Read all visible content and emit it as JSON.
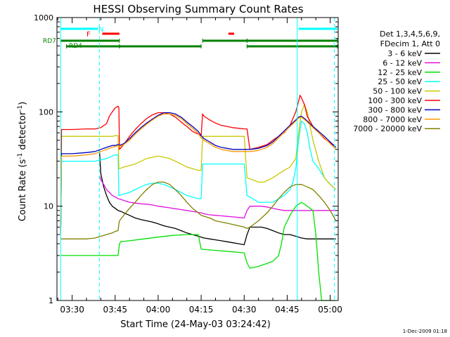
{
  "chart_data": {
    "type": "line",
    "title": "HESSI Observing Summary Count Rates",
    "xlabel": "Start Time (24-May-03 03:24:42)",
    "ylabel_main": "Count Rate (s",
    "ylabel_sup1": "-1",
    "ylabel_mid": " detector",
    "ylabel_sup2": "-1",
    "ylabel_end": ")",
    "y_scale": "log",
    "ylim": [
      1,
      1000
    ],
    "y_ticks": [
      {
        "value": 1,
        "label": "1"
      },
      {
        "value": 10,
        "label": "10"
      },
      {
        "value": 100,
        "label": "100"
      },
      {
        "value": 1000,
        "label": "1000"
      }
    ],
    "x_start_min": 24.7,
    "x_end_min": 122.8,
    "x_ticks": [
      {
        "value": 30,
        "label": "03:30"
      },
      {
        "value": 45,
        "label": "03:45"
      },
      {
        "value": 60,
        "label": "04:00"
      },
      {
        "value": 75,
        "label": "04:15"
      },
      {
        "value": 90,
        "label": "04:30"
      },
      {
        "value": 105,
        "label": "04:45"
      },
      {
        "value": 120,
        "label": "05:00"
      }
    ],
    "legend_header": [
      "Det 1,3,4,5,6,9,",
      "FDecim 1, Att 0"
    ],
    "legend_position": "right",
    "series": [
      {
        "name": "3 - 6 keV",
        "color": "#000000",
        "x": [
          39.5,
          40,
          41,
          42,
          43,
          44,
          45,
          46,
          47,
          48,
          50,
          52,
          54,
          56,
          58,
          60,
          62,
          64,
          66,
          68,
          70,
          72,
          74,
          75,
          76,
          78,
          80,
          82,
          84,
          86,
          88,
          90,
          91,
          92,
          94,
          96,
          98,
          100,
          102,
          104,
          106,
          108,
          110,
          112,
          114,
          116,
          118,
          120,
          122
        ],
        "y": [
          40,
          22,
          16,
          13,
          11,
          10,
          9.5,
          9,
          8.8,
          8.5,
          8,
          7.5,
          7.2,
          7,
          6.8,
          6.5,
          6.2,
          6,
          5.8,
          5.5,
          5.2,
          5,
          4.8,
          4.7,
          4.6,
          4.5,
          4.4,
          4.3,
          4.2,
          4.1,
          4,
          3.9,
          5,
          6,
          6,
          6,
          5.8,
          5.5,
          5.2,
          5,
          5,
          4.8,
          4.6,
          4.5,
          4.5,
          4.5,
          4.5,
          4.5,
          4.5
        ]
      },
      {
        "name": "6 - 12 keV",
        "color": "#e010e0",
        "x": [
          39.5,
          40,
          41,
          42,
          43,
          44,
          45,
          46,
          47,
          48,
          50,
          52,
          54,
          56,
          58,
          60,
          62,
          64,
          66,
          68,
          70,
          72,
          74,
          75,
          76,
          78,
          80,
          82,
          84,
          86,
          88,
          90,
          91,
          92,
          94,
          96,
          98,
          100,
          102,
          104,
          106,
          108,
          110,
          112,
          114,
          116,
          118,
          120,
          122
        ],
        "y": [
          21,
          19,
          17,
          15,
          14,
          13,
          12.5,
          12,
          11.8,
          11.5,
          11,
          10.8,
          10.6,
          10.5,
          10.3,
          10,
          9.8,
          9.6,
          9.4,
          9.2,
          9,
          8.8,
          8.6,
          8.5,
          8.3,
          8.1,
          8,
          7.9,
          7.8,
          7.7,
          7.6,
          7.5,
          9,
          10,
          10,
          10,
          9.8,
          9.5,
          9.2,
          9,
          9,
          9,
          9,
          9,
          9,
          9,
          9,
          9,
          9
        ]
      },
      {
        "name": "12 - 25 keV",
        "color": "#00e000",
        "x": [
          26,
          30,
          35,
          38,
          40,
          43,
          45,
          46,
          46.5,
          47,
          50,
          55,
          60,
          65,
          70,
          73,
          74,
          75,
          80,
          85,
          90,
          91,
          92,
          95,
          100,
          102,
          103,
          104,
          106,
          108,
          110,
          112,
          114,
          115,
          116,
          117,
          118,
          120,
          122
        ],
        "y": [
          3,
          3,
          3,
          3,
          3,
          3,
          3,
          3,
          4,
          4.2,
          4.3,
          4.5,
          4.7,
          4.9,
          5,
          5,
          5,
          3.5,
          3.4,
          3.3,
          3.2,
          2.5,
          2.2,
          2.3,
          2.6,
          3,
          4,
          6,
          8,
          10,
          11,
          10,
          9,
          5,
          2,
          1,
          1,
          1,
          1
        ]
      },
      {
        "name": "25 - 50 keV",
        "color": "#00ffff",
        "x": [
          26,
          26.3,
          30,
          35,
          38,
          40,
          42,
          44,
          45,
          46,
          46.3,
          46.5,
          48,
          50,
          52,
          54,
          56,
          58,
          60,
          62,
          64,
          66,
          68,
          70,
          72,
          74,
          75,
          75.5,
          78,
          80,
          85,
          90,
          91,
          93,
          95,
          97,
          100,
          102,
          104,
          105,
          106,
          107,
          108,
          109,
          110,
          111,
          112,
          113,
          114,
          116,
          118,
          120,
          122
        ],
        "y": [
          5,
          30,
          30,
          30,
          30,
          31,
          32,
          34,
          35,
          35,
          13,
          13,
          13.5,
          14,
          15,
          16,
          17,
          17.5,
          17.5,
          17,
          16,
          15,
          14,
          13,
          12.5,
          12,
          12,
          28,
          28,
          28,
          28,
          28,
          13,
          12,
          11,
          11,
          11,
          12,
          13,
          14,
          15,
          18,
          25,
          50,
          80,
          75,
          60,
          40,
          30,
          25,
          20,
          17,
          15
        ]
      },
      {
        "name": "50 - 100 keV",
        "color": "#c8c800",
        "x": [
          26,
          26.3,
          30,
          35,
          40,
          44,
          45,
          46,
          46.3,
          46.5,
          48,
          50,
          52,
          54,
          56,
          58,
          60,
          62,
          64,
          66,
          68,
          70,
          72,
          74,
          75,
          75.5,
          78,
          80,
          85,
          90,
          91,
          93,
          95,
          97,
          100,
          102,
          104,
          106,
          108,
          109,
          110,
          111,
          112,
          113,
          114,
          116,
          118,
          120,
          122
        ],
        "y": [
          5,
          55,
          55,
          55,
          55,
          55,
          56,
          56,
          25,
          25,
          26,
          27,
          28,
          30,
          32,
          33,
          34,
          33,
          32,
          30,
          28,
          26,
          25,
          24,
          24,
          55,
          55,
          55,
          55,
          55,
          20,
          19,
          18,
          18,
          20,
          22,
          24,
          26,
          32,
          60,
          100,
          120,
          100,
          70,
          50,
          30,
          20,
          17,
          15
        ]
      },
      {
        "name": "100 - 300 keV",
        "color": "#ff0000",
        "x": [
          26,
          26.3,
          30,
          35,
          38,
          40,
          42,
          43,
          44,
          45,
          46,
          46.3,
          46.5,
          48,
          50,
          52,
          54,
          56,
          58,
          60,
          62,
          64,
          66,
          68,
          70,
          72,
          74,
          75,
          75.5,
          76,
          78,
          80,
          82,
          84,
          86,
          88,
          90,
          91,
          92,
          95,
          98,
          100,
          102,
          104,
          106,
          107,
          108,
          109,
          109.5,
          110,
          111,
          112,
          114,
          116,
          118,
          120,
          122
        ],
        "y": [
          5,
          65,
          65,
          66,
          66,
          68,
          75,
          90,
          100,
          110,
          115,
          110,
          40,
          45,
          55,
          65,
          75,
          85,
          93,
          98,
          98,
          95,
          88,
          78,
          70,
          62,
          58,
          56,
          95,
          90,
          82,
          76,
          72,
          70,
          68,
          67,
          66,
          66,
          40,
          42,
          45,
          50,
          55,
          60,
          72,
          85,
          100,
          130,
          150,
          140,
          120,
          90,
          70,
          60,
          52,
          47,
          42
        ]
      },
      {
        "name": "300 - 800 keV",
        "color": "#0000c0",
        "x": [
          26,
          26.3,
          30,
          35,
          38,
          40,
          42,
          44,
          45,
          46,
          46.3,
          46.5,
          48,
          50,
          52,
          54,
          56,
          58,
          60,
          62,
          64,
          66,
          68,
          70,
          72,
          74,
          75,
          76,
          78,
          80,
          82,
          84,
          86,
          88,
          90,
          91,
          92,
          95,
          98,
          100,
          102,
          104,
          106,
          108,
          109,
          110,
          111,
          112,
          114,
          116,
          118,
          120,
          122
        ],
        "y": [
          5,
          36,
          36,
          37,
          38,
          40,
          42,
          44,
          44,
          45,
          45,
          44,
          46,
          52,
          60,
          68,
          76,
          84,
          92,
          98,
          98,
          95,
          88,
          78,
          70,
          62,
          56,
          52,
          48,
          44,
          42,
          41,
          40,
          40,
          40,
          40,
          40,
          41,
          44,
          48,
          55,
          63,
          72,
          82,
          88,
          90,
          85,
          80,
          70,
          62,
          55,
          48,
          42
        ]
      },
      {
        "name": "800 - 7000 keV",
        "color": "#ff9900",
        "x": [
          26,
          26.3,
          30,
          35,
          38,
          40,
          42,
          44,
          45,
          46,
          46.3,
          46.5,
          48,
          50,
          52,
          54,
          56,
          58,
          60,
          62,
          64,
          66,
          68,
          70,
          72,
          74,
          75,
          76,
          78,
          80,
          82,
          84,
          86,
          88,
          90,
          91,
          92,
          95,
          98,
          100,
          102,
          104,
          106,
          108,
          109,
          110,
          111,
          112,
          114,
          116,
          118,
          120,
          122
        ],
        "y": [
          5,
          34,
          34,
          35,
          36,
          38,
          40,
          42,
          43,
          44,
          44,
          43,
          45,
          50,
          58,
          66,
          74,
          82,
          90,
          95,
          95,
          92,
          85,
          75,
          67,
          59,
          53,
          50,
          46,
          42,
          40,
          39,
          38,
          38,
          38,
          38,
          38,
          39,
          42,
          46,
          53,
          61,
          70,
          80,
          86,
          88,
          83,
          78,
          68,
          60,
          53,
          46,
          40
        ]
      },
      {
        "name": "7000 - 20000 keV",
        "color": "#808000",
        "x": [
          26,
          30,
          35,
          38,
          40,
          42,
          44,
          45,
          46,
          46.3,
          46.5,
          48,
          50,
          52,
          54,
          56,
          58,
          60,
          62,
          64,
          66,
          68,
          70,
          72,
          74,
          75,
          78,
          80,
          85,
          90,
          91,
          92,
          95,
          98,
          100,
          102,
          104,
          106,
          108,
          110,
          112,
          114,
          116,
          118,
          120,
          122
        ],
        "y": [
          4.5,
          4.5,
          4.5,
          4.6,
          4.8,
          5,
          5.2,
          5.4,
          5.5,
          6.5,
          7,
          8,
          9.5,
          11,
          13,
          15,
          17,
          18,
          18,
          17,
          15,
          13,
          11,
          9.5,
          8.5,
          8,
          7.5,
          7,
          6.5,
          6,
          5.8,
          6,
          7,
          8.5,
          10,
          12,
          14,
          16,
          17,
          17,
          16,
          15,
          13,
          11,
          9,
          7
        ]
      }
    ]
  },
  "attenuator_lines": [
    {
      "value": 26,
      "style": "solid"
    },
    {
      "value": 39.5,
      "style": "dashed"
    },
    {
      "value": 108.5,
      "style": "solid"
    },
    {
      "value": 121.5,
      "style": "dashed"
    }
  ],
  "flags": {
    "n_label": "N",
    "f_label": "F",
    "rd7_label": "RD7",
    "rd4_label": "RD4",
    "n_bars": [
      [
        26,
        39
      ],
      [
        109,
        122.5
      ]
    ],
    "f_bars": [
      [
        40.5,
        46.5
      ],
      [
        84.5,
        86.5
      ]
    ],
    "rd7_bars": [
      [
        26,
        46.5
      ],
      [
        75.5,
        91
      ],
      [
        91,
        122.5
      ]
    ],
    "rd4_bars": [
      [
        28,
        46.5
      ],
      [
        46.5,
        75
      ],
      [
        91,
        122.5
      ]
    ],
    "colors": {
      "n": "#00ffff",
      "f": "#ff0000",
      "rd": "#008000"
    }
  },
  "footer": {
    "timestamp": "1-Dec-2009 01:18"
  }
}
